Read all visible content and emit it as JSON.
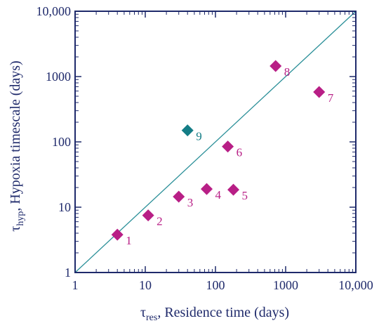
{
  "chart_data": {
    "type": "scatter",
    "x_scale": "log",
    "y_scale": "log",
    "xlim": [
      1,
      10000
    ],
    "ylim": [
      1,
      10000
    ],
    "x_ticks": [
      1,
      10,
      100,
      1000,
      10000
    ],
    "y_ticks": [
      1,
      10,
      100,
      1000,
      10000
    ],
    "x_tick_labels": [
      "1",
      "10",
      "100",
      "1000",
      "10,000"
    ],
    "y_tick_labels": [
      "1",
      "10",
      "100",
      "1000",
      "10,000"
    ],
    "xlabel": {
      "symbol": "τ",
      "sub": "res",
      "text": ", Residence time (days)"
    },
    "ylabel": {
      "symbol": "τ",
      "sub": "hyp",
      "text": ", Hypoxia timescale (days)"
    },
    "reference_line": {
      "type": "1:1",
      "color": "#2a8f98"
    },
    "grid": false,
    "colors": {
      "axis": "#1f2a6b",
      "magenta": "#b81f86",
      "teal": "#147d86"
    },
    "points": [
      {
        "label": "1",
        "x": 4,
        "y": 3.8,
        "color": "#b81f86"
      },
      {
        "label": "2",
        "x": 11,
        "y": 7.5,
        "color": "#b81f86"
      },
      {
        "label": "3",
        "x": 30,
        "y": 14.5,
        "color": "#b81f86"
      },
      {
        "label": "4",
        "x": 75,
        "y": 19,
        "color": "#b81f86"
      },
      {
        "label": "5",
        "x": 180,
        "y": 18.5,
        "color": "#b81f86"
      },
      {
        "label": "6",
        "x": 150,
        "y": 85,
        "color": "#b81f86"
      },
      {
        "label": "7",
        "x": 3000,
        "y": 580,
        "color": "#b81f86"
      },
      {
        "label": "8",
        "x": 720,
        "y": 1450,
        "color": "#b81f86"
      },
      {
        "label": "9",
        "x": 40,
        "y": 150,
        "color": "#147d86"
      }
    ]
  }
}
